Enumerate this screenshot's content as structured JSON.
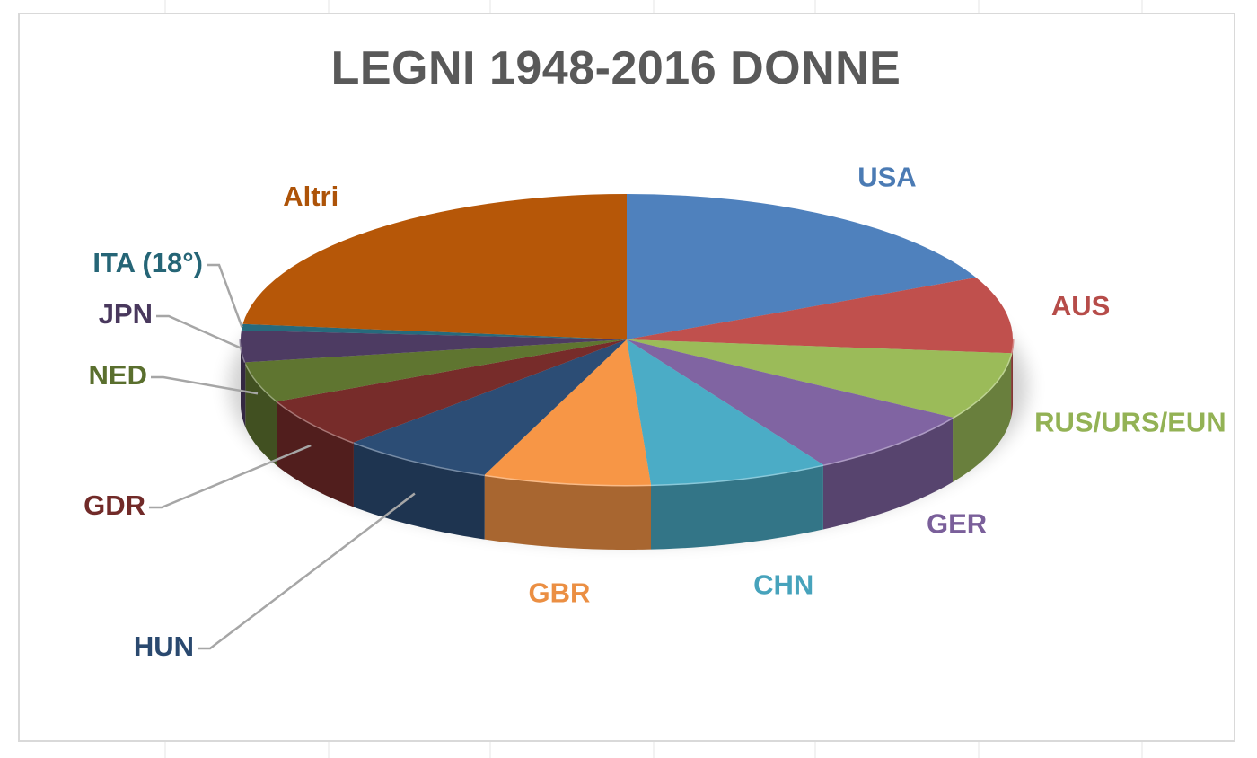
{
  "chart_data": {
    "type": "pie",
    "title": "LEGNI 1948-2016 DONNE",
    "style": "3d",
    "labels_shown": "category names only",
    "categories": [
      "USA",
      "AUS",
      "RUS/URS/EUN",
      "GER",
      "CHN",
      "GBR",
      "HUN",
      "GDR",
      "NED",
      "JPN",
      "ITA (18°)",
      "Altri"
    ],
    "values": [
      18.0,
      8.5,
      7.5,
      7.5,
      7.5,
      7.0,
      6.5,
      5.5,
      4.5,
      3.5,
      0.7,
      23.3
    ],
    "colors": [
      "#4f81bd",
      "#c0504d",
      "#9bbb59",
      "#8064a2",
      "#4bacc6",
      "#f79646",
      "#2c4d75",
      "#772c2a",
      "#5f7530",
      "#4d3b62",
      "#276a7c",
      "#b65708"
    ],
    "legend": "none"
  }
}
